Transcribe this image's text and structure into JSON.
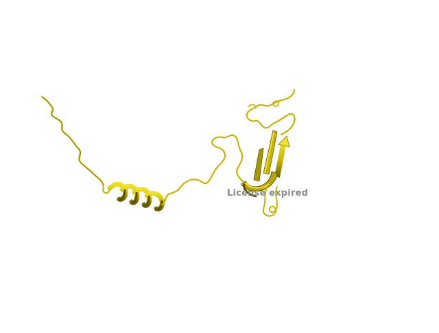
{
  "render": {
    "watermark_text": "License expired",
    "background_color": "#ffffff",
    "structure_color": "#c8b400",
    "structure_highlight": "#f0e030",
    "structure_shadow": "#6e6400"
  }
}
